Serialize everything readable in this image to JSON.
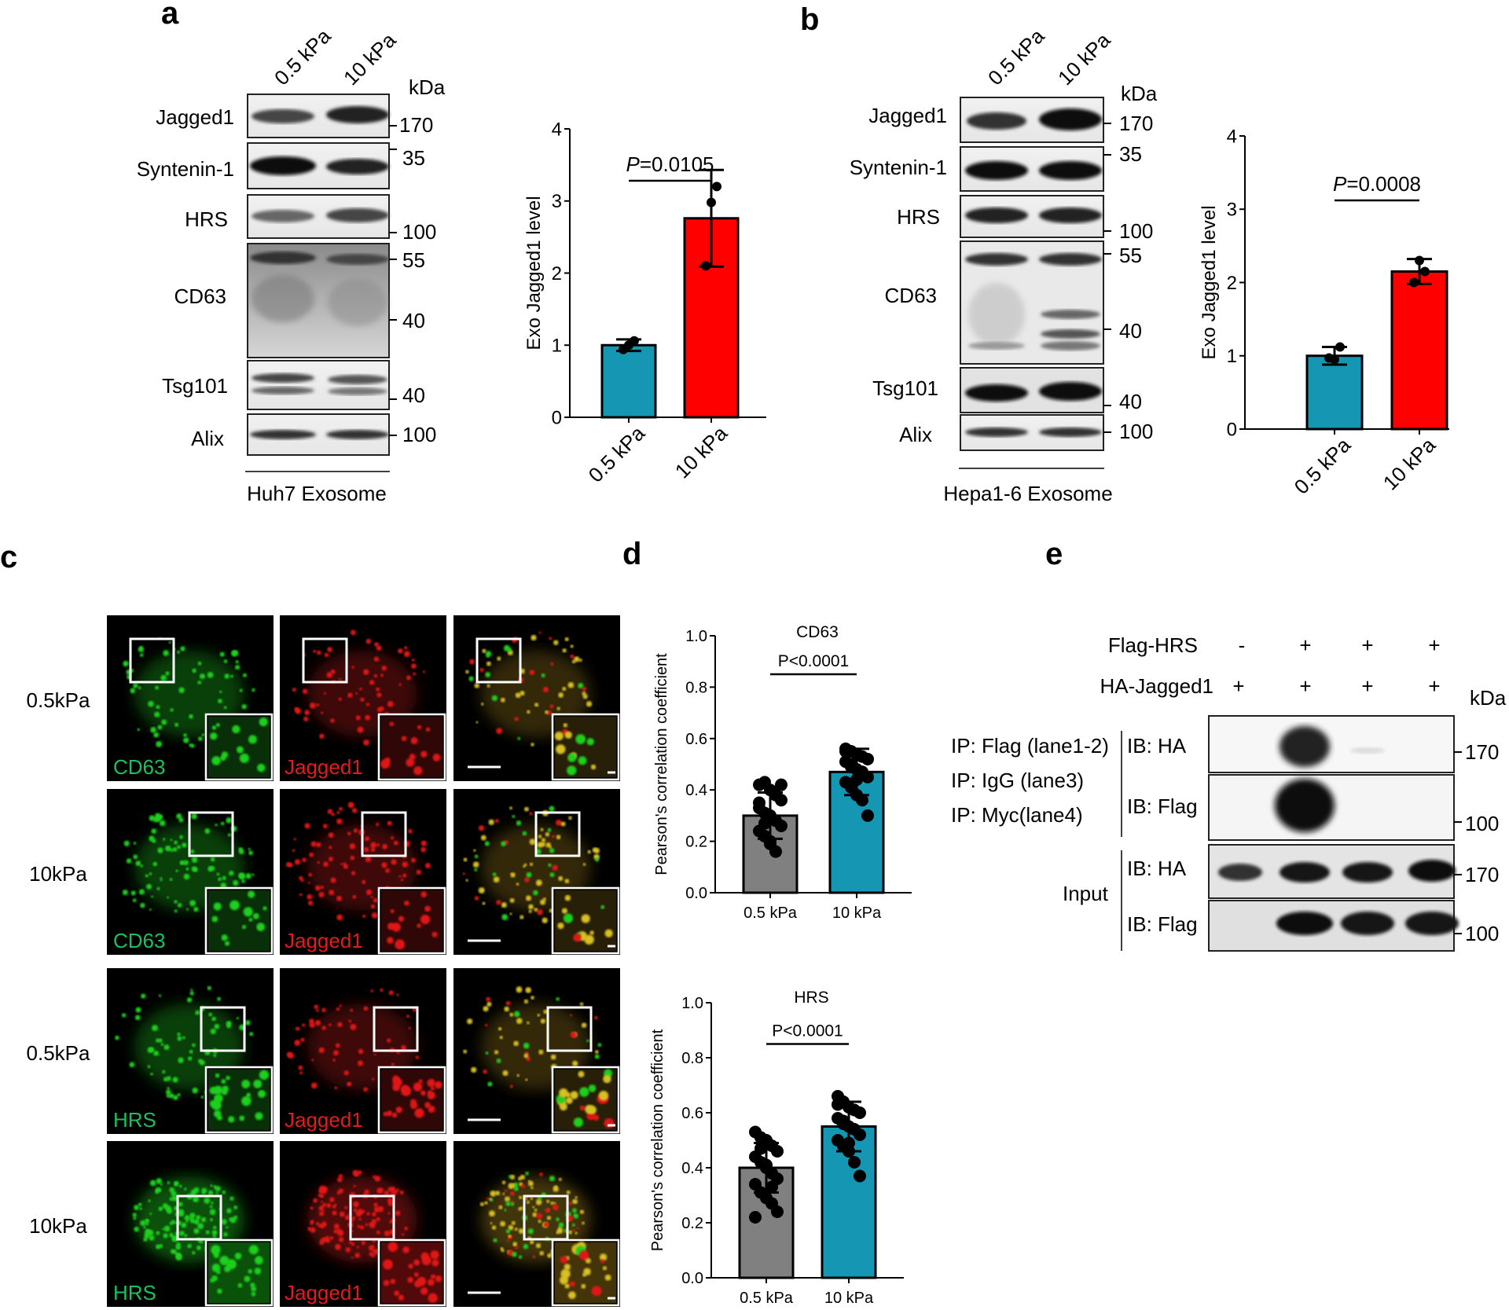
{
  "panel_letters": {
    "a": "a",
    "b": "b",
    "c": "c",
    "d": "d",
    "e": "e"
  },
  "panel_a": {
    "lanes": [
      "0.5 kPa",
      "10 kPa"
    ],
    "kda_label": "kDa",
    "rows": [
      {
        "label": "Jagged1",
        "markers": [
          "170"
        ]
      },
      {
        "label": "Syntenin-1",
        "markers": [
          "35"
        ]
      },
      {
        "label": "HRS",
        "markers": [
          "100"
        ]
      },
      {
        "label": "CD63",
        "markers": [
          "55",
          "40"
        ]
      },
      {
        "label": "Tsg101",
        "markers": [
          "40"
        ]
      },
      {
        "label": "Alix",
        "markers": [
          "100"
        ]
      }
    ],
    "caption": "Huh7 Exosome"
  },
  "panel_b": {
    "lanes": [
      "0.5 kPa",
      "10 kPa"
    ],
    "kda_label": "kDa",
    "rows": [
      {
        "label": "Jagged1",
        "markers": [
          "170"
        ]
      },
      {
        "label": "Syntenin-1",
        "markers": [
          "35"
        ]
      },
      {
        "label": "HRS",
        "markers": [
          "100"
        ]
      },
      {
        "label": "CD63",
        "markers": [
          "55",
          "40"
        ]
      },
      {
        "label": "Tsg101",
        "markers": [
          "40"
        ]
      },
      {
        "label": "Alix",
        "markers": [
          "100"
        ]
      }
    ],
    "caption": "Hepa1-6 Exosome"
  },
  "panel_c": {
    "row_labels": [
      "0.5kPa",
      "10kPa",
      "0.5kPa",
      "10kPa"
    ],
    "green_labels": [
      "CD63",
      "CD63",
      "HRS",
      "HRS"
    ],
    "red_label": "Jagged1"
  },
  "panel_e": {
    "flag_hrs_label": "Flag-HRS",
    "flag_hrs_values": [
      "-",
      "+",
      "+",
      "+"
    ],
    "ha_jagged1_label": "HA-Jagged1",
    "ha_jagged1_values": [
      "+",
      "+",
      "+",
      "+"
    ],
    "kda_label": "kDa",
    "ip_labels": [
      "IP: Flag (lane1-2)",
      "IP: IgG (lane3)",
      "IP: Myc(lane4)"
    ],
    "input_label": "Input",
    "ib_labels": [
      "IB: HA",
      "IB: Flag",
      "IB: HA",
      "IB: Flag"
    ],
    "markers": [
      "170",
      "100",
      "170",
      "100"
    ]
  },
  "chart_data": [
    {
      "id": "a",
      "type": "bar",
      "categories": [
        "0.5 kPa",
        "10 kPa"
      ],
      "values": [
        1.0,
        2.76
      ],
      "errors": [
        0.08,
        0.67
      ],
      "points": [
        [
          0.94,
          1.0,
          1.06
        ],
        [
          2.1,
          2.98,
          3.2
        ]
      ],
      "colors": [
        "#1597b4",
        "#ff0000"
      ],
      "ylabel": "Exo Jagged1 level",
      "ylim": [
        0,
        4
      ],
      "yticks": [
        0,
        1,
        2,
        3,
        4
      ],
      "pvalue": "=0.0105",
      "p_letter": "P"
    },
    {
      "id": "b",
      "type": "bar",
      "categories": [
        "0.5 kPa",
        "10 kPa"
      ],
      "values": [
        1.0,
        2.15
      ],
      "errors": [
        0.12,
        0.17
      ],
      "points": [
        [
          0.97,
          0.95,
          1.12
        ],
        [
          2.0,
          2.3,
          2.15
        ]
      ],
      "colors": [
        "#1597b4",
        "#ff0000"
      ],
      "ylabel": "Exo Jagged1 level",
      "ylim": [
        0,
        4
      ],
      "yticks": [
        0,
        1,
        2,
        3,
        4
      ],
      "pvalue": "=0.0008",
      "p_letter": "P"
    },
    {
      "id": "d1",
      "type": "bar",
      "title": "CD63",
      "categories": [
        "0.5 kPa",
        "10 kPa"
      ],
      "values": [
        0.3,
        0.47
      ],
      "errors": [
        0.09,
        0.09
      ],
      "points": [
        [
          0.42,
          0.43,
          0.4,
          0.38,
          0.36,
          0.33,
          0.31,
          0.3,
          0.28,
          0.26,
          0.24,
          0.22,
          0.2,
          0.16,
          0.42,
          0.35,
          0.27,
          0.19
        ],
        [
          0.56,
          0.55,
          0.54,
          0.53,
          0.52,
          0.51,
          0.5,
          0.48,
          0.47,
          0.45,
          0.43,
          0.41,
          0.38,
          0.36,
          0.3,
          0.55,
          0.49,
          0.44
        ]
      ],
      "colors": [
        "#808080",
        "#1597b4"
      ],
      "ylabel": "Pearson's correlation coefficient",
      "ylim": [
        0,
        1
      ],
      "yticks": [
        "0.0",
        "0.2",
        "0.4",
        "0.6",
        "0.8",
        "1.0"
      ],
      "pvalue": "P<0.0001"
    },
    {
      "id": "d2",
      "type": "bar",
      "title": "HRS",
      "categories": [
        "0.5 kPa",
        "10 kPa"
      ],
      "values": [
        0.4,
        0.55
      ],
      "errors": [
        0.09,
        0.09
      ],
      "points": [
        [
          0.53,
          0.51,
          0.5,
          0.48,
          0.46,
          0.44,
          0.42,
          0.4,
          0.38,
          0.36,
          0.34,
          0.31,
          0.29,
          0.27,
          0.24,
          0.22,
          0.47,
          0.41,
          0.33
        ],
        [
          0.66,
          0.64,
          0.62,
          0.61,
          0.6,
          0.58,
          0.57,
          0.55,
          0.54,
          0.52,
          0.5,
          0.48,
          0.46,
          0.42,
          0.37,
          0.63,
          0.56,
          0.49
        ]
      ],
      "colors": [
        "#808080",
        "#1597b4"
      ],
      "ylabel": "Pearson's correlation coefficient",
      "ylim": [
        0,
        1
      ],
      "yticks": [
        "0.0",
        "0.2",
        "0.4",
        "0.6",
        "0.8",
        "1.0"
      ],
      "pvalue": "P<0.0001"
    }
  ]
}
